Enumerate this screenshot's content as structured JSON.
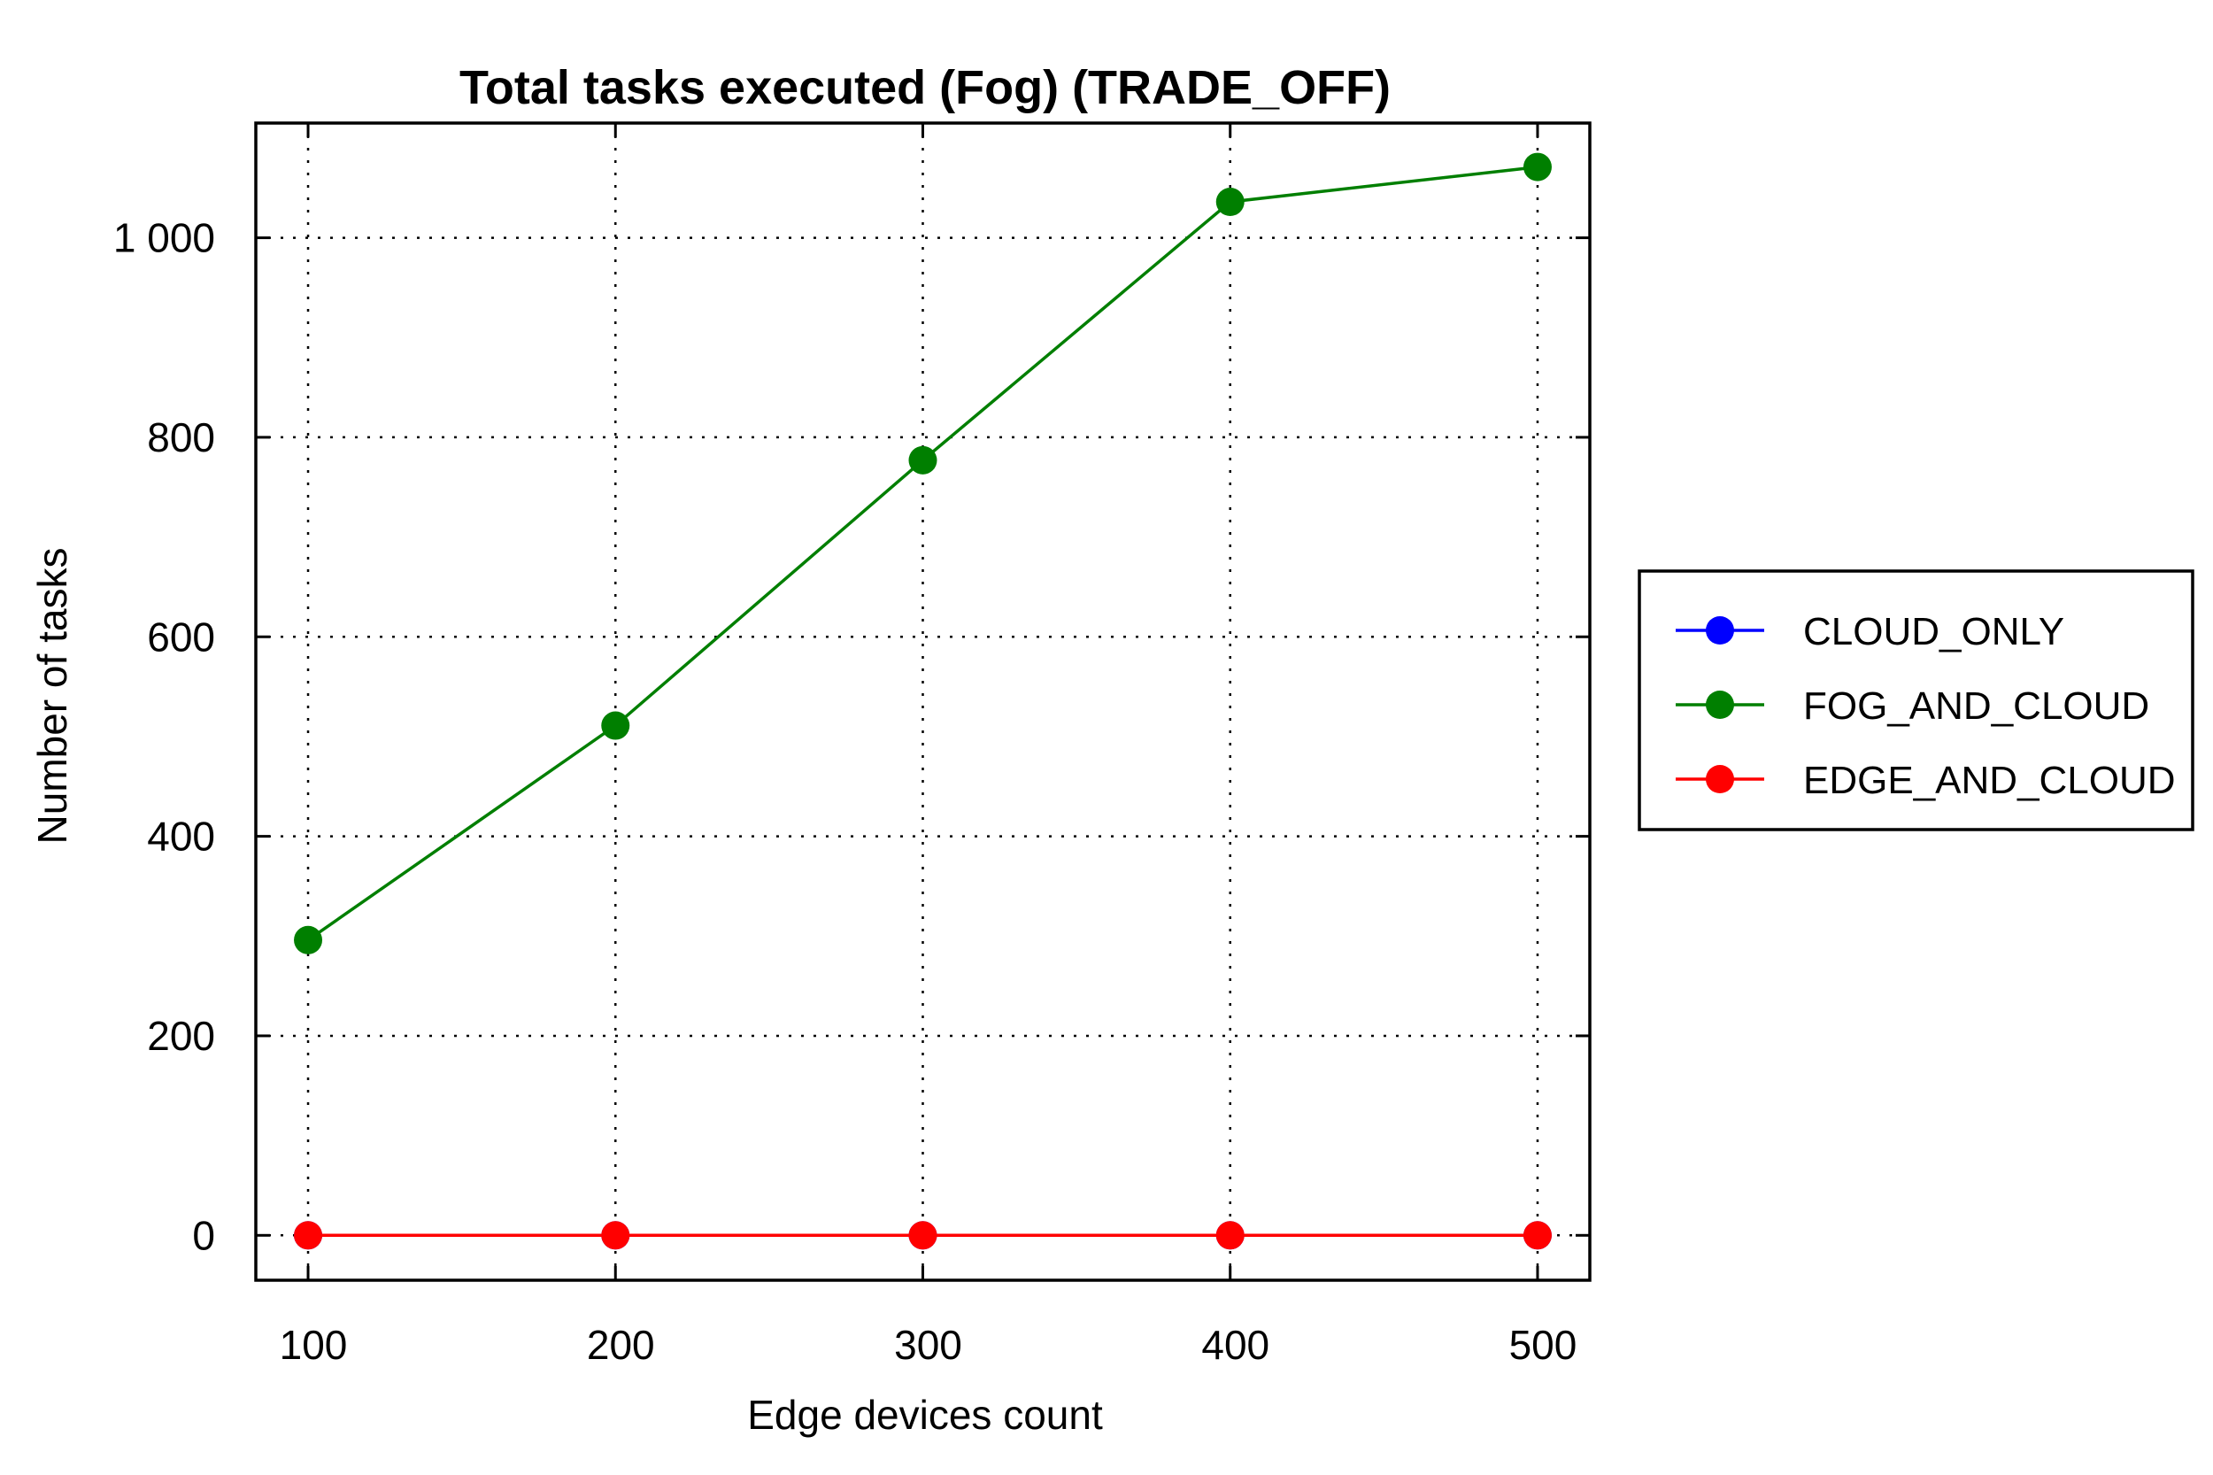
{
  "chart_data": {
    "type": "line",
    "title": "Total tasks executed (Fog) (TRADE_OFF)",
    "xlabel": "Edge devices count",
    "ylabel": "Number of tasks",
    "x": [
      100,
      200,
      300,
      400,
      500
    ],
    "xlim": [
      83,
      517
    ],
    "ylim": [
      -45,
      1115
    ],
    "xticks": [
      100,
      200,
      300,
      400,
      500
    ],
    "xtick_labels": [
      "100",
      "200",
      "300",
      "400",
      "500"
    ],
    "yticks": [
      0,
      200,
      400,
      600,
      800,
      1000
    ],
    "ytick_labels": [
      "0",
      "200",
      "400",
      "600",
      "800",
      "1 000"
    ],
    "grid": true,
    "legend_position": "right",
    "series": [
      {
        "name": "CLOUD_ONLY",
        "color": "#0000ff",
        "values": [
          0,
          0,
          0,
          0,
          0
        ]
      },
      {
        "name": "FOG_AND_CLOUD",
        "color": "#007f00",
        "values": [
          296,
          511,
          777,
          1036,
          1071
        ]
      },
      {
        "name": "EDGE_AND_CLOUD",
        "color": "#ff0000",
        "values": [
          0,
          0,
          0,
          0,
          0
        ]
      }
    ]
  }
}
